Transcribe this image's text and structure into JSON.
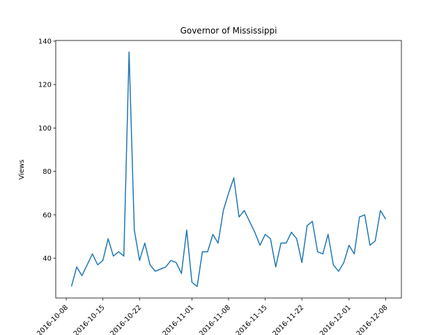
{
  "chart_data": {
    "type": "line",
    "title": "Governor of Mississippi",
    "ylabel": "Views",
    "color": "#1f77b4",
    "x": [
      "2016-10-09",
      "2016-10-10",
      "2016-10-11",
      "2016-10-12",
      "2016-10-13",
      "2016-10-14",
      "2016-10-15",
      "2016-10-16",
      "2016-10-17",
      "2016-10-18",
      "2016-10-19",
      "2016-10-20",
      "2016-10-21",
      "2016-10-22",
      "2016-10-23",
      "2016-10-24",
      "2016-10-25",
      "2016-10-26",
      "2016-10-27",
      "2016-10-28",
      "2016-10-29",
      "2016-10-30",
      "2016-10-31",
      "2016-11-01",
      "2016-11-02",
      "2016-11-03",
      "2016-11-04",
      "2016-11-05",
      "2016-11-06",
      "2016-11-07",
      "2016-11-08",
      "2016-11-09",
      "2016-11-10",
      "2016-11-11",
      "2016-11-12",
      "2016-11-13",
      "2016-11-14",
      "2016-11-15",
      "2016-11-16",
      "2016-11-17",
      "2016-11-18",
      "2016-11-19",
      "2016-11-20",
      "2016-11-21",
      "2016-11-22",
      "2016-11-23",
      "2016-11-24",
      "2016-11-25",
      "2016-11-26",
      "2016-11-27",
      "2016-11-28",
      "2016-11-29",
      "2016-11-30",
      "2016-12-01",
      "2016-12-02",
      "2016-12-03",
      "2016-12-04",
      "2016-12-05",
      "2016-12-06",
      "2016-12-07",
      "2016-12-08"
    ],
    "values": [
      27,
      36,
      32,
      37,
      42,
      37,
      39,
      49,
      41,
      43,
      41,
      135,
      53,
      39,
      47,
      37,
      34,
      35,
      36,
      39,
      38,
      33,
      53,
      29,
      27,
      43,
      43,
      51,
      47,
      62,
      70,
      77,
      59,
      62,
      57,
      52,
      46,
      51,
      49,
      36,
      47,
      47,
      52,
      49,
      38,
      55,
      57,
      43,
      42,
      51,
      37,
      34,
      38,
      46,
      42,
      59,
      60,
      46,
      48,
      62,
      58
    ],
    "xlim": [
      "2016-10-06",
      "2016-12-11"
    ],
    "xticks": [
      "2016-10-08",
      "2016-10-15",
      "2016-10-22",
      "2016-11-01",
      "2016-11-08",
      "2016-11-15",
      "2016-11-22",
      "2016-12-01",
      "2016-12-08"
    ],
    "ylim": [
      21.7,
      140.3
    ],
    "yticks": [
      40,
      60,
      80,
      100,
      120,
      140
    ]
  }
}
